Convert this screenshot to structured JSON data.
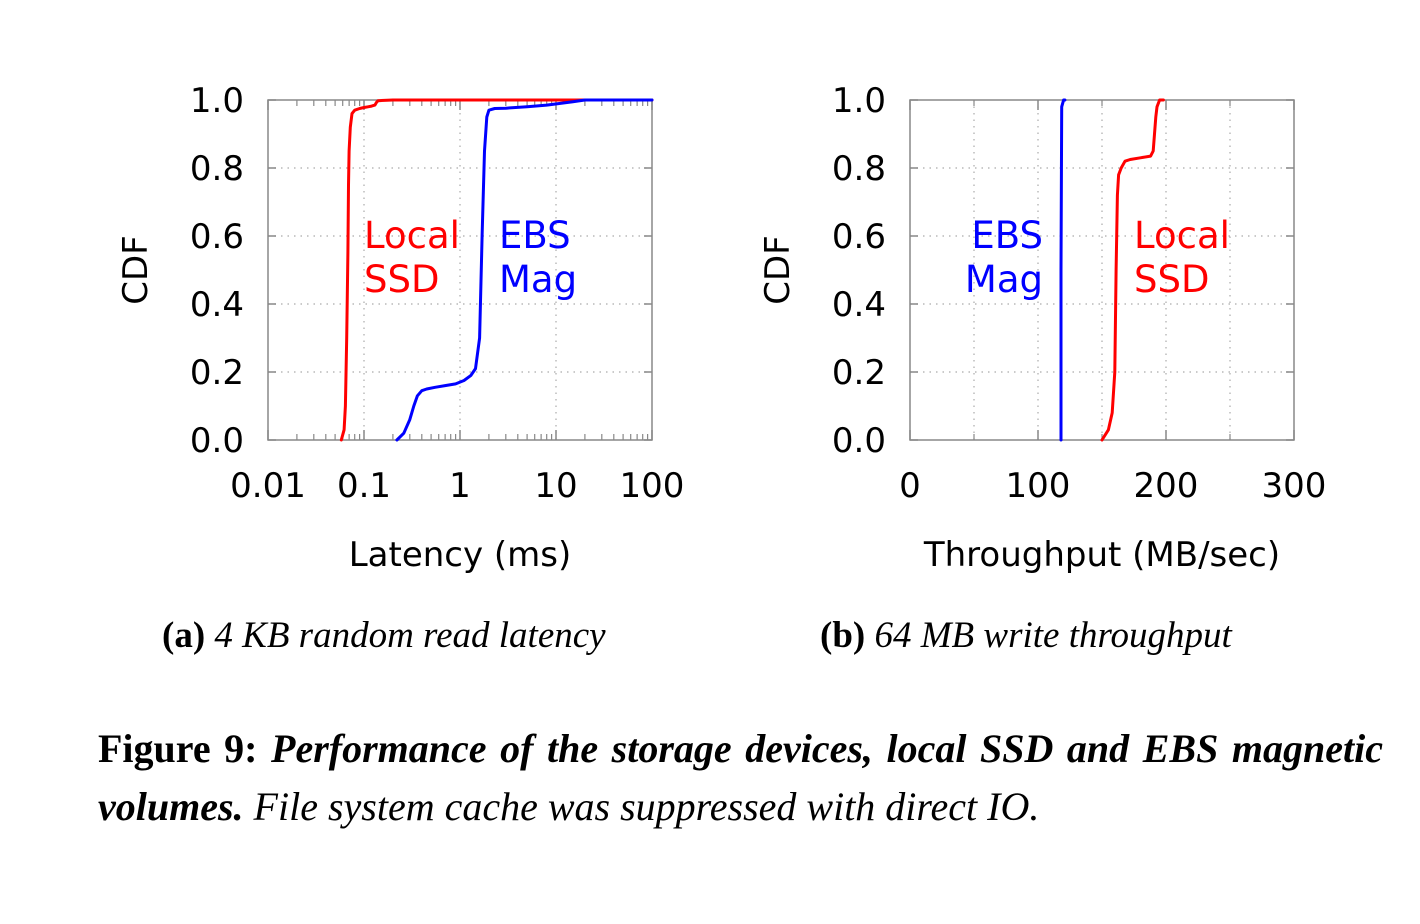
{
  "chart_data": [
    {
      "type": "line",
      "id": "a",
      "xscale": "log",
      "xlim": [
        0.01,
        100
      ],
      "ylim": [
        0,
        1
      ],
      "xticks": [
        "0.01",
        "0.1",
        "1",
        "10",
        "100"
      ],
      "yticks": [
        "0.0",
        "0.2",
        "0.4",
        "0.6",
        "0.8",
        "1.0"
      ],
      "xlabel": "Latency (ms)",
      "ylabel": "CDF",
      "grid": true,
      "series": [
        {
          "name": "Local SSD",
          "label_lines": [
            "Local",
            "SSD"
          ],
          "color": "#ff0000",
          "x": [
            0.058,
            0.062,
            0.064,
            0.066,
            0.068,
            0.069,
            0.07,
            0.072,
            0.075,
            0.08,
            0.09,
            0.1,
            0.11,
            0.12,
            0.13,
            0.135,
            0.14,
            0.2,
            1,
            5,
            20,
            100
          ],
          "y": [
            0.0,
            0.03,
            0.1,
            0.3,
            0.55,
            0.75,
            0.85,
            0.92,
            0.96,
            0.97,
            0.975,
            0.978,
            0.98,
            0.982,
            0.985,
            0.993,
            0.998,
            1.0,
            1.0,
            1.0,
            1.0,
            1.0
          ]
        },
        {
          "name": "EBS Mag",
          "label_lines": [
            "EBS",
            "Mag"
          ],
          "color": "#0000ff",
          "x": [
            0.22,
            0.26,
            0.3,
            0.33,
            0.36,
            0.4,
            0.45,
            0.55,
            0.7,
            0.9,
            1.1,
            1.3,
            1.45,
            1.6,
            1.7,
            1.8,
            1.9,
            2.0,
            2.3,
            3,
            5,
            8,
            15,
            20,
            40,
            100
          ],
          "y": [
            0.0,
            0.02,
            0.06,
            0.1,
            0.13,
            0.145,
            0.15,
            0.155,
            0.16,
            0.165,
            0.175,
            0.19,
            0.21,
            0.3,
            0.6,
            0.85,
            0.95,
            0.97,
            0.975,
            0.976,
            0.98,
            0.985,
            0.995,
            1.0,
            1.0,
            1.0
          ]
        }
      ]
    },
    {
      "type": "line",
      "id": "b",
      "xscale": "linear",
      "xlim": [
        0,
        300
      ],
      "ylim": [
        0,
        1
      ],
      "xticks": [
        "0",
        "100",
        "200",
        "300"
      ],
      "yticks": [
        "0.0",
        "0.2",
        "0.4",
        "0.6",
        "0.8",
        "1.0"
      ],
      "xlabel": "Throughput (MB/sec)",
      "ylabel": "CDF",
      "grid": true,
      "series": [
        {
          "name": "EBS Mag",
          "label_lines": [
            "EBS",
            "Mag"
          ],
          "color": "#0000ff",
          "x": [
            118,
            118,
            118.5,
            120,
            121
          ],
          "y": [
            0.0,
            0.5,
            0.98,
            1.0,
            1.0
          ]
        },
        {
          "name": "Local SSD",
          "label_lines": [
            "Local",
            "SSD"
          ],
          "color": "#ff0000",
          "x": [
            150,
            155,
            158,
            160,
            161,
            162,
            163,
            165,
            168,
            172,
            180,
            188,
            190,
            191,
            192,
            193,
            195,
            198
          ],
          "y": [
            0.0,
            0.03,
            0.08,
            0.2,
            0.5,
            0.72,
            0.78,
            0.8,
            0.82,
            0.825,
            0.83,
            0.835,
            0.85,
            0.9,
            0.95,
            0.98,
            1.0,
            1.0
          ]
        }
      ]
    }
  ],
  "subcaptions": [
    {
      "label": "(a)",
      "text": "4 KB random read latency"
    },
    {
      "label": "(b)",
      "text": "64 MB write throughput"
    }
  ],
  "caption": {
    "label": "Figure 9:",
    "title": "Performance of the storage devices, local SSD and EBS magnetic volumes.",
    "text": "File system cache was suppressed with direct IO."
  }
}
